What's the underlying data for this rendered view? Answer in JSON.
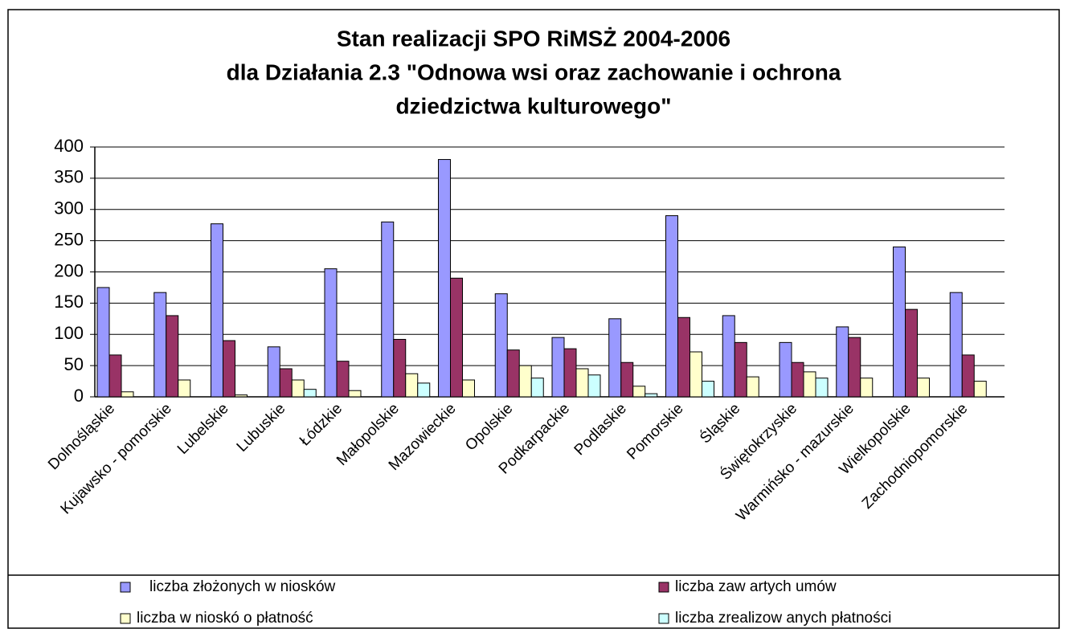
{
  "chart_data": {
    "type": "bar",
    "title": [
      "Stan realizacji SPO RiMSŻ  2004-2006",
      "dla Działania 2.3 \"Odnowa wsi oraz zachowanie i ochrona",
      "dziedzictwa kulturowego\""
    ],
    "categories": [
      "Dolnośląskie",
      "Kujawsko - pomorskie",
      "Lubelskie",
      "Lubuskie",
      "Łódzkie",
      "Małopolskie",
      "Mazowieckie",
      "Opolskie",
      "Podkarpackie",
      "Podlaskie",
      "Pomorskie",
      "Śląskie",
      "Świętokrzyskie",
      "Warmińsko - mazurskie",
      "Wielkopolskie",
      "Zachodniopomorskie"
    ],
    "series": [
      {
        "name": "liczba złożonych w niosków",
        "color": "#9999ff",
        "values": [
          175,
          167,
          277,
          80,
          205,
          280,
          380,
          165,
          95,
          125,
          290,
          130,
          87,
          112,
          240,
          167
        ]
      },
      {
        "name": "liczba zaw artych umów",
        "color": "#993366",
        "values": [
          67,
          130,
          90,
          45,
          57,
          92,
          190,
          75,
          77,
          55,
          127,
          87,
          55,
          95,
          140,
          67
        ]
      },
      {
        "name": "liczba w nioskó o płatność",
        "color": "#ffffcc",
        "values": [
          8,
          27,
          3,
          27,
          10,
          37,
          27,
          50,
          45,
          17,
          72,
          32,
          40,
          30,
          30,
          25
        ]
      },
      {
        "name": "liczba zrealizow anych płatności",
        "color": "#ccffff",
        "values": [
          0,
          0,
          0,
          12,
          0,
          22,
          0,
          30,
          35,
          5,
          25,
          0,
          30,
          0,
          0,
          0
        ]
      }
    ],
    "ylim": [
      0,
      400
    ],
    "yticks": [
      0,
      50,
      100,
      150,
      200,
      250,
      300,
      350,
      400
    ],
    "grid": true,
    "legend": "bottom"
  }
}
